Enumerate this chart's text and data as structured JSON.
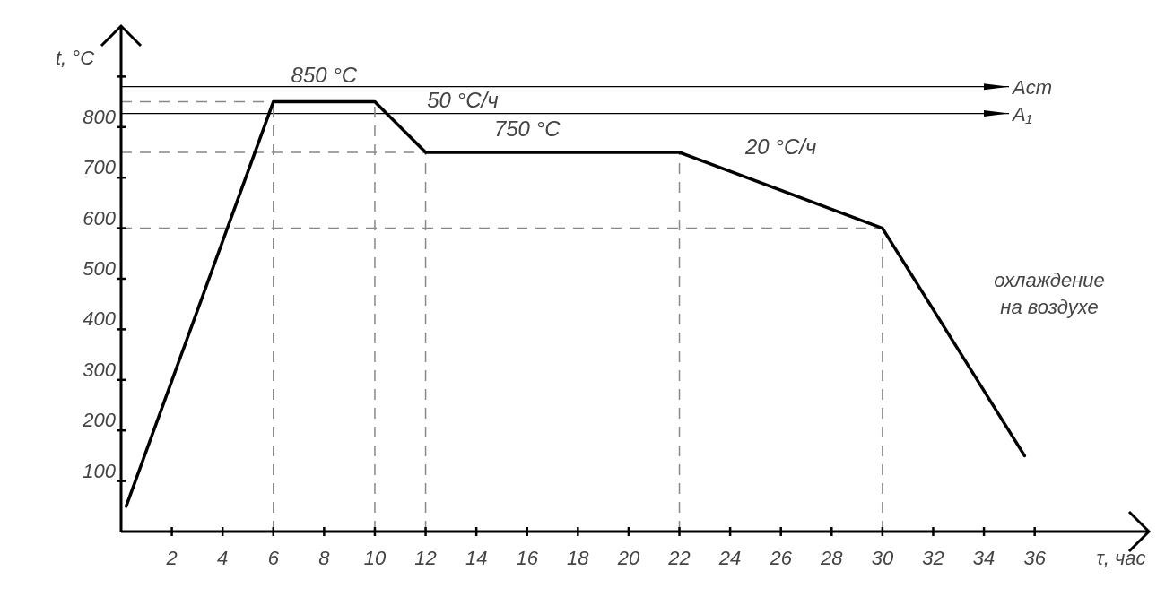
{
  "chart_data": {
    "type": "line",
    "xlabel": "τ, час",
    "ylabel": "t, °C",
    "x": [
      0.2,
      6,
      10,
      12,
      22,
      30,
      35.6
    ],
    "series": [
      {
        "color": "#000000",
        "values": [
          50,
          850,
          850,
          750,
          750,
          600,
          150
        ]
      }
    ],
    "xlim": [
      0,
      40.5
    ],
    "ylim": [
      0,
      1000
    ],
    "xticks": [
      2,
      4,
      6,
      8,
      10,
      12,
      14,
      16,
      18,
      20,
      22,
      24,
      26,
      28,
      30,
      32,
      34,
      36
    ],
    "yticks": [
      100,
      200,
      300,
      400,
      500,
      600,
      700,
      800,
      {
        "value": 900,
        "label": null
      }
    ],
    "grid": false,
    "marker": "none",
    "line_style": "solid",
    "ref_lines": [
      {
        "axis": "y",
        "value": 880,
        "label": "Acm",
        "color": "#000000",
        "line_style": "solid"
      },
      {
        "axis": "y",
        "value": 827,
        "label": "A₁",
        "color": "#000000",
        "line_style": "solid"
      },
      {
        "axis": "y",
        "value": 850,
        "color": "#888888",
        "line_style": "dashed"
      },
      {
        "axis": "y",
        "value": 750,
        "color": "#888888",
        "line_style": "dashed"
      },
      {
        "axis": "y",
        "value": 600,
        "color": "#888888",
        "line_style": "dashed"
      },
      {
        "axis": "x",
        "value": 6,
        "color": "#888888",
        "line_style": "dashed"
      },
      {
        "axis": "x",
        "value": 10,
        "color": "#888888",
        "line_style": "dashed"
      },
      {
        "axis": "x",
        "value": 12,
        "color": "#888888",
        "line_style": "dashed"
      },
      {
        "axis": "x",
        "value": 22,
        "color": "#888888",
        "line_style": "dashed"
      },
      {
        "axis": "x",
        "value": 30,
        "color": "#888888",
        "line_style": "dashed"
      }
    ],
    "annotations": [
      {
        "text": "850 °C",
        "x": 8,
        "y": 850
      },
      {
        "text": "50 °C/ч",
        "x": 11,
        "y": 800
      },
      {
        "text": "750 °C",
        "x": 16,
        "y": 750
      },
      {
        "text": "20 °C/ч",
        "x": 26,
        "y": 675
      },
      "охлаждение на воздухе"
    ]
  }
}
